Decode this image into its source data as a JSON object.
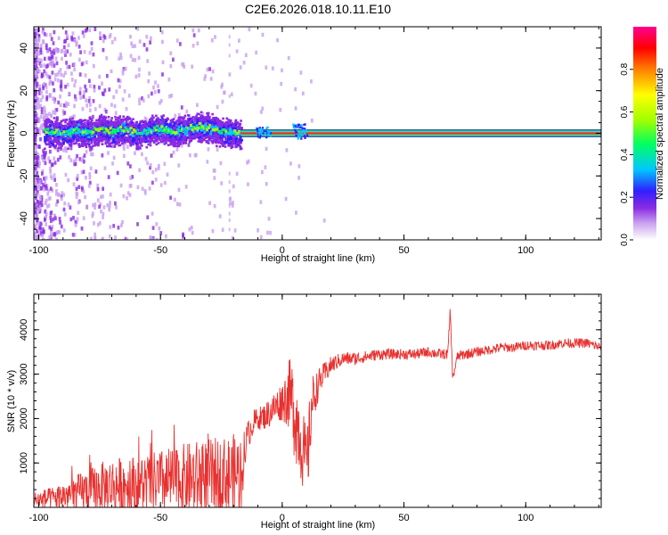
{
  "title": "C2E6.2026.018.10.11.E10",
  "colors": {
    "axis": "#000000",
    "snr_line": "#e8312f",
    "ridge": "#e8312f",
    "ridge_edge": "#18c0e0",
    "background": "#ffffff"
  },
  "chart_data": [
    {
      "type": "heatmap",
      "name": "spectrogram",
      "title": "C2E6.2026.018.10.11.E10",
      "xlabel": "Height of straight line (km)",
      "ylabel": "Frequency (Hz)",
      "xlim": [
        -102,
        131
      ],
      "ylim": [
        -50,
        50
      ],
      "x_ticks": [
        -100,
        -50,
        0,
        50,
        100
      ],
      "x_tick_labels": [
        "-100",
        "-50",
        "0",
        "50",
        "100"
      ],
      "y_ticks": [
        -40,
        -20,
        0,
        20,
        40
      ],
      "y_tick_labels": [
        "-40",
        "-20",
        "0",
        "20",
        "40"
      ],
      "ridge_frequency_hz": 0,
      "ridge_points": [
        [
          -100,
          0.5
        ],
        [
          -95,
          1.0
        ],
        [
          -90,
          0.0
        ],
        [
          -85,
          1.5
        ],
        [
          -80,
          0.5
        ],
        [
          -75,
          2.0
        ],
        [
          -70,
          1.0
        ],
        [
          -65,
          2.5
        ],
        [
          -60,
          0.0
        ],
        [
          -55,
          1.5
        ],
        [
          -50,
          2.5
        ],
        [
          -45,
          0.5
        ],
        [
          -40,
          2.0
        ],
        [
          -35,
          3.5
        ],
        [
          -30,
          2.5
        ],
        [
          -25,
          1.0
        ],
        [
          -20,
          0.0
        ],
        [
          -15,
          0.0
        ],
        [
          0,
          0.0
        ],
        [
          50,
          0.0
        ],
        [
          100,
          0.0
        ],
        [
          131,
          0.0
        ]
      ],
      "colorbar": {
        "label": "Normalized spectral amplitude",
        "range": [
          0,
          1
        ],
        "ticks": [
          0.0,
          0.2,
          0.4,
          0.6,
          0.8
        ],
        "tick_labels": [
          "0.0",
          "0.2",
          "0.4",
          "0.6",
          "0.8"
        ],
        "colormap": [
          "#ffffff",
          "#c8a0f0",
          "#8a2be2",
          "#3020ff",
          "#00c8ff",
          "#00ff60",
          "#a0ff00",
          "#ffff00",
          "#ff8000",
          "#ff0000",
          "#ff0090"
        ]
      }
    },
    {
      "type": "line",
      "name": "snr",
      "xlabel": "Height of straight line (km)",
      "ylabel": "SNR (10 * v/v)",
      "xlim": [
        -102,
        131
      ],
      "ylim": [
        0,
        4800
      ],
      "x_ticks": [
        -100,
        -50,
        0,
        50,
        100
      ],
      "x_tick_labels": [
        "-100",
        "-50",
        "0",
        "50",
        "100"
      ],
      "y_ticks": [
        1000,
        2000,
        3000,
        4000
      ],
      "y_tick_labels": [
        "1000",
        "2000",
        "3000",
        "4000"
      ],
      "series": [
        {
          "name": "SNR",
          "x": [
            -102,
            -95,
            -90,
            -85,
            -80,
            -75,
            -70,
            -65,
            -60,
            -55,
            -50,
            -45,
            -40,
            -35,
            -30,
            -25,
            -20,
            -17,
            -15,
            -12,
            -10,
            -7,
            -5,
            -2,
            0,
            3,
            5,
            7,
            9,
            10,
            11,
            12,
            14,
            16,
            18,
            20,
            25,
            30,
            35,
            40,
            45,
            50,
            55,
            60,
            65,
            68,
            69,
            70,
            72,
            75,
            80,
            85,
            90,
            95,
            100,
            105,
            110,
            115,
            120,
            125,
            131
          ],
          "values": [
            200,
            250,
            320,
            400,
            480,
            560,
            620,
            640,
            660,
            680,
            720,
            760,
            800,
            840,
            860,
            880,
            920,
            960,
            1500,
            1900,
            2000,
            2050,
            2150,
            2300,
            2400,
            2550,
            2200,
            1700,
            1200,
            1000,
            1400,
            2300,
            2650,
            2900,
            3050,
            3200,
            3350,
            3350,
            3400,
            3450,
            3450,
            3450,
            3450,
            3500,
            3450,
            3450,
            4450,
            2900,
            3400,
            3450,
            3500,
            3550,
            3600,
            3600,
            3650,
            3650,
            3650,
            3700,
            3700,
            3700,
            3600
          ],
          "noise_amplitude": [
            200,
            250,
            320,
            400,
            480,
            560,
            620,
            640,
            660,
            680,
            720,
            760,
            800,
            840,
            860,
            880,
            920,
            960,
            350,
            300,
            250,
            300,
            350,
            400,
            450,
            800,
            1100,
            1000,
            900,
            600,
            900,
            700,
            400,
            300,
            250,
            200,
            150,
            150,
            130,
            130,
            120,
            120,
            120,
            120,
            120,
            120,
            120,
            120,
            120,
            120,
            110,
            110,
            110,
            110,
            110,
            110,
            110,
            110,
            110,
            110,
            110
          ]
        }
      ]
    }
  ]
}
